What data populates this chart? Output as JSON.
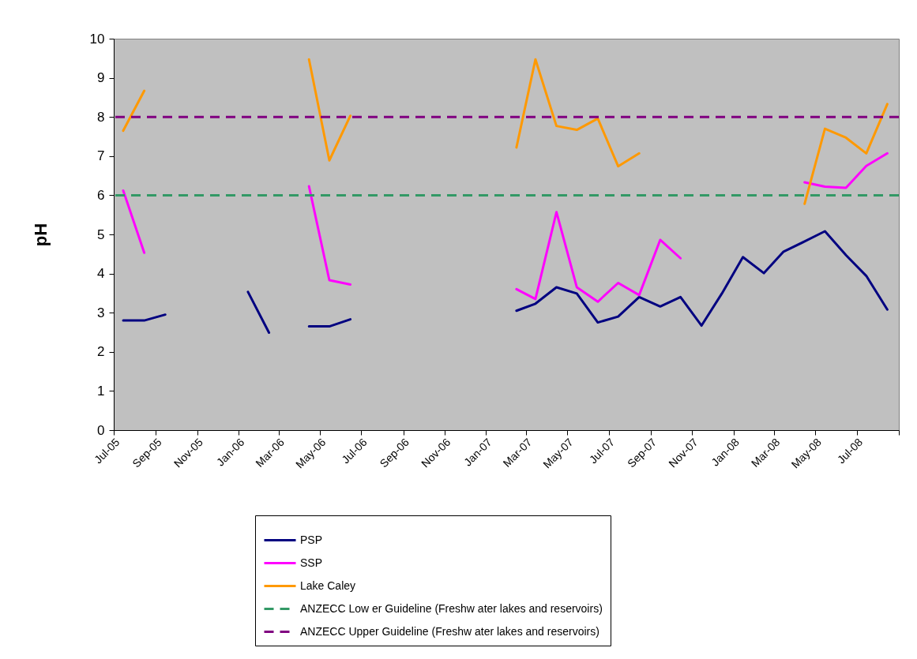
{
  "chart_data": {
    "type": "line",
    "ylabel": "pH",
    "x": [
      "2005-07-15",
      "2005-08-15",
      "2005-09-15",
      "2005-10-15",
      "2005-11-15",
      "2005-12-15",
      "2006-01-15",
      "2006-02-15",
      "2006-03-15",
      "2006-04-15",
      "2006-05-15",
      "2006-06-15",
      "2006-07-15",
      "2006-08-15",
      "2006-09-15",
      "2006-10-15",
      "2006-11-15",
      "2006-12-15",
      "2007-01-15",
      "2007-02-15",
      "2007-03-15",
      "2007-04-15",
      "2007-05-15",
      "2007-06-15",
      "2007-07-15",
      "2007-08-15",
      "2007-09-15",
      "2007-10-15",
      "2007-11-15",
      "2007-12-15",
      "2008-01-15",
      "2008-02-15",
      "2008-03-15",
      "2008-04-15",
      "2008-05-15",
      "2008-06-15",
      "2008-07-15",
      "2008-08-15"
    ],
    "series": [
      {
        "name": "PSP",
        "color": "#000080",
        "values": [
          2.8,
          2.8,
          2.95,
          null,
          null,
          null,
          3.53,
          2.49,
          null,
          2.65,
          2.65,
          2.83,
          null,
          null,
          null,
          null,
          null,
          null,
          null,
          3.05,
          3.23,
          3.65,
          3.49,
          2.75,
          2.9,
          3.4,
          3.16,
          3.4,
          2.67,
          3.49,
          4.42,
          4.01,
          4.56,
          4.82,
          5.08,
          4.47,
          3.94,
          3.08
        ]
      },
      {
        "name": "SSP",
        "color": "#ff00ff",
        "values": [
          6.12,
          4.53,
          null,
          null,
          null,
          null,
          null,
          null,
          null,
          6.23,
          3.83,
          3.72,
          null,
          null,
          null,
          null,
          null,
          null,
          null,
          3.6,
          3.35,
          5.57,
          3.65,
          3.28,
          3.76,
          3.45,
          4.86,
          4.39,
          null,
          null,
          null,
          null,
          null,
          6.33,
          6.22,
          6.19,
          6.75,
          7.07
        ]
      },
      {
        "name": "Lake Caley",
        "color": "#ff9900",
        "values": [
          7.65,
          8.67,
          null,
          null,
          null,
          null,
          null,
          null,
          null,
          9.47,
          6.89,
          8.03,
          null,
          null,
          null,
          null,
          null,
          null,
          null,
          7.22,
          9.47,
          7.77,
          7.67,
          7.96,
          6.74,
          7.07,
          null,
          null,
          null,
          null,
          null,
          null,
          null,
          5.78,
          7.7,
          7.47,
          7.07,
          8.33
        ]
      }
    ],
    "ref_lines": [
      {
        "axis": "y",
        "value": 6,
        "label": "ANZECC Low er Guideline (Freshw ater lakes and reservoirs)",
        "color": "#339966",
        "line_style": "dashed"
      },
      {
        "axis": "y",
        "value": 8,
        "label": "ANZECC Upper Guideline (Freshw ater lakes and reservoirs)",
        "color": "#800080",
        "line_style": "dashed"
      }
    ],
    "xlim": [
      "2005-07-01",
      "2008-09-01"
    ],
    "xticks": [
      {
        "value": "2005-07-01",
        "label": "Jul-05"
      },
      {
        "value": "2005-09-01",
        "label": "Sep-05"
      },
      {
        "value": "2005-11-01",
        "label": "Nov-05"
      },
      {
        "value": "2006-01-01",
        "label": "Jan-06"
      },
      {
        "value": "2006-03-01",
        "label": "Mar-06"
      },
      {
        "value": "2006-05-01",
        "label": "May-06"
      },
      {
        "value": "2006-07-01",
        "label": "Jul-06"
      },
      {
        "value": "2006-09-01",
        "label": "Sep-06"
      },
      {
        "value": "2006-11-01",
        "label": "Nov-06"
      },
      {
        "value": "2007-01-01",
        "label": "Jan-07"
      },
      {
        "value": "2007-03-01",
        "label": "Mar-07"
      },
      {
        "value": "2007-05-01",
        "label": "May-07"
      },
      {
        "value": "2007-07-01",
        "label": "Jul-07"
      },
      {
        "value": "2007-09-01",
        "label": "Sep-07"
      },
      {
        "value": "2007-11-01",
        "label": "Nov-07"
      },
      {
        "value": "2008-01-01",
        "label": "Jan-08"
      },
      {
        "value": "2008-03-01",
        "label": "Mar-08"
      },
      {
        "value": "2008-05-01",
        "label": "May-08"
      },
      {
        "value": "2008-07-01",
        "label": "Jul-08"
      },
      {
        "value": "2008-09-01",
        "label": null
      }
    ],
    "ylim": [
      0,
      10
    ],
    "yticks": [
      0,
      1,
      2,
      3,
      4,
      5,
      6,
      7,
      8,
      9,
      10
    ],
    "grid": false,
    "legend": "bottom",
    "line_style": "solid"
  }
}
